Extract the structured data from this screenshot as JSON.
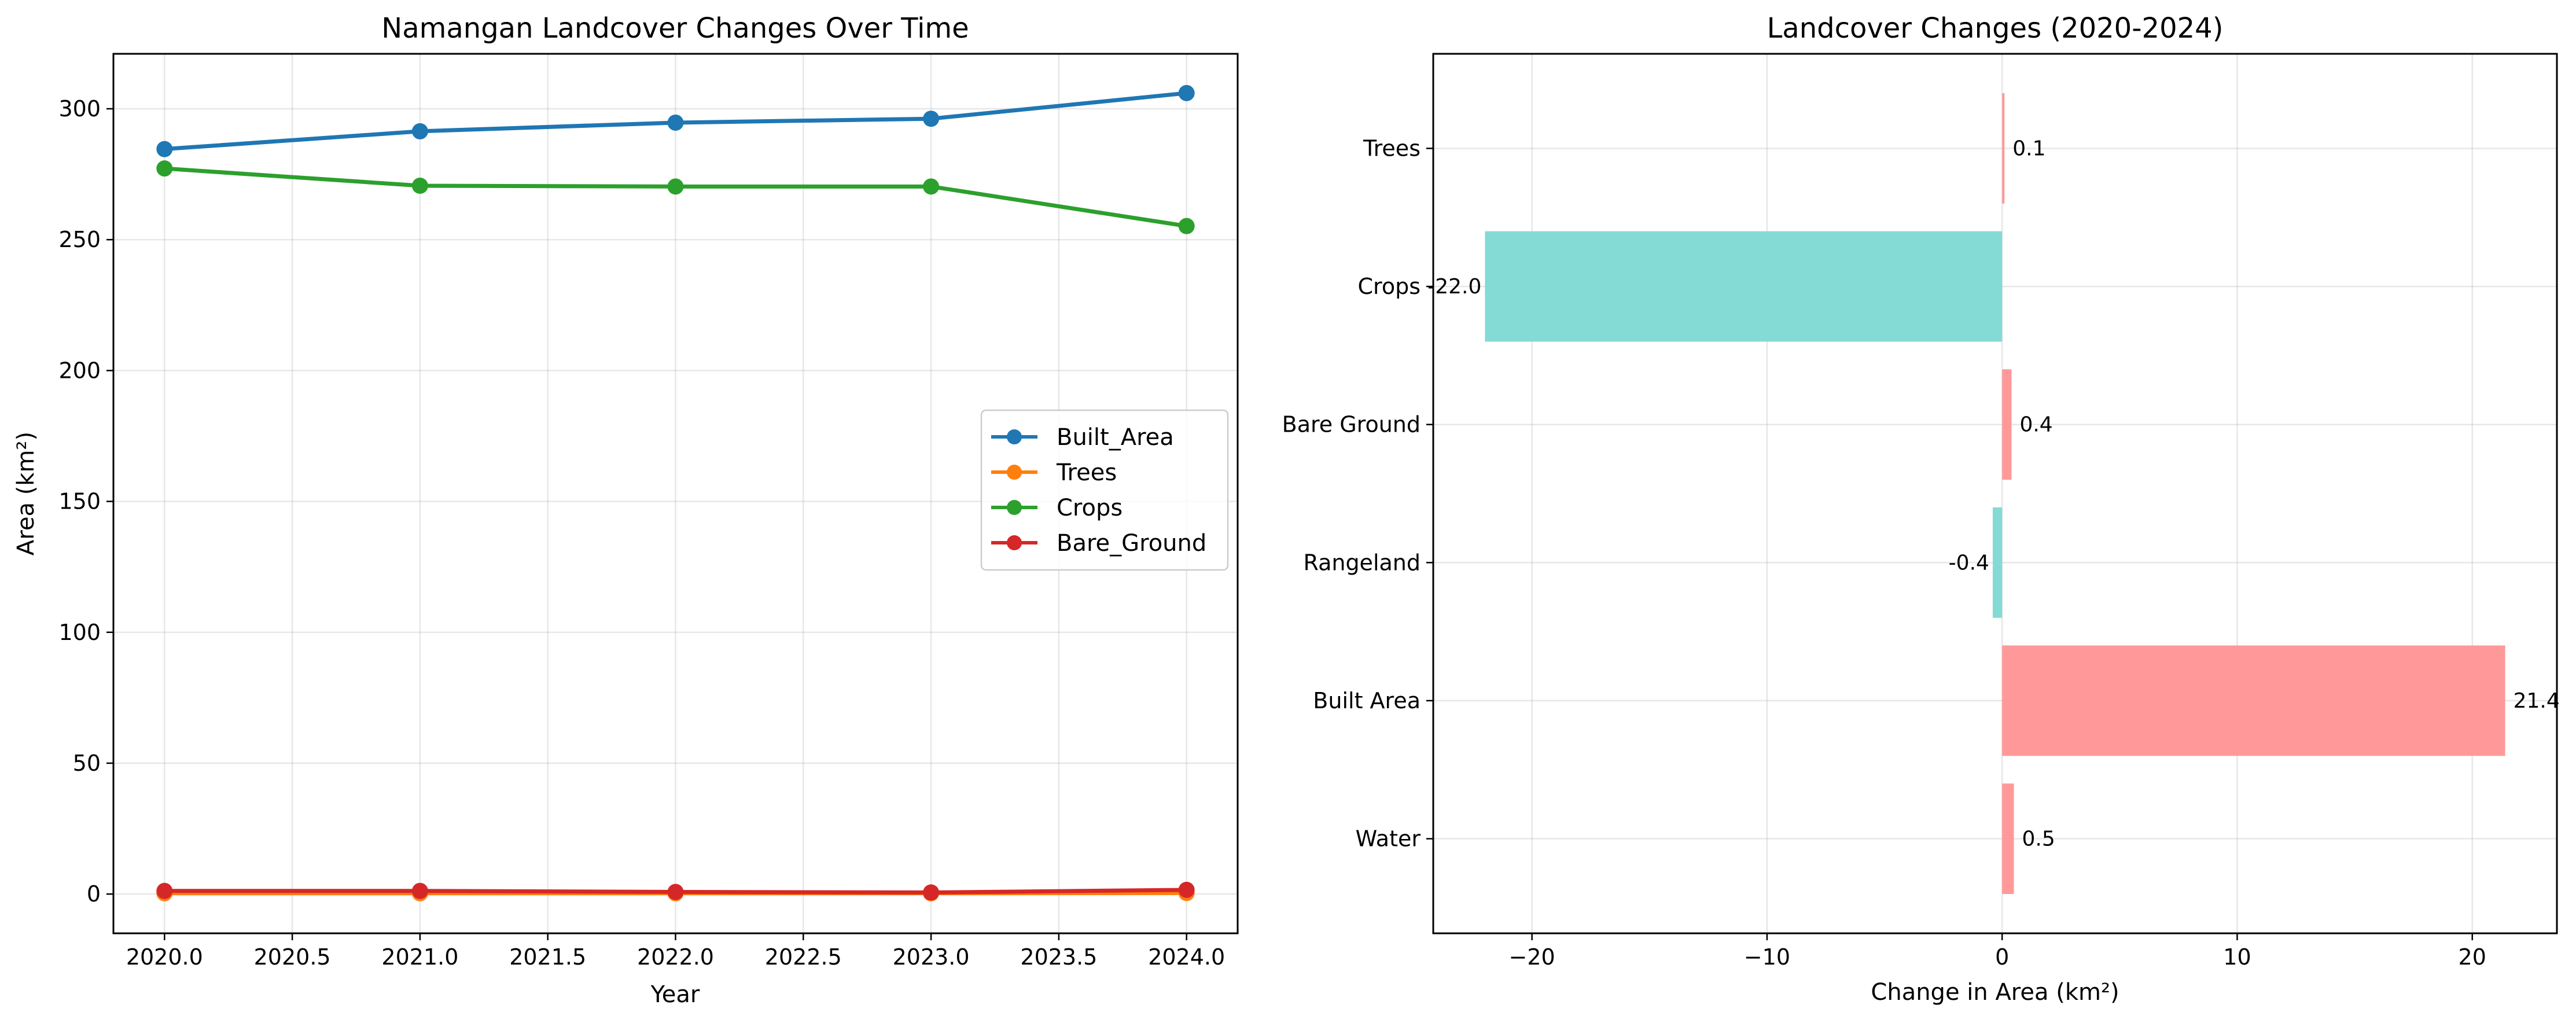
{
  "chart_data": [
    {
      "type": "line",
      "title": "Namangan Landcover Changes Over Time",
      "xlabel": "Year",
      "ylabel": "Area (km²)",
      "x": [
        2020,
        2021,
        2022,
        2023,
        2024
      ],
      "xlim": [
        2019.8,
        2024.2
      ],
      "ylim": [
        -15,
        321
      ],
      "xticks": [
        "2020.0",
        "2020.5",
        "2021.0",
        "2021.5",
        "2022.0",
        "2022.5",
        "2023.0",
        "2023.5",
        "2024.0"
      ],
      "yticks": [
        "0",
        "50",
        "100",
        "150",
        "200",
        "250",
        "300"
      ],
      "grid": true,
      "legend_position": "center-right",
      "series": [
        {
          "name": "Built_Area",
          "color": "#1f77b4",
          "values": [
            284.6,
            291.4,
            294.7,
            296.2,
            306.0
          ]
        },
        {
          "name": "Trees",
          "color": "#ff7f0e",
          "values": [
            0.3,
            0.3,
            0.3,
            0.3,
            0.4
          ]
        },
        {
          "name": "Crops",
          "color": "#2ca02c",
          "values": [
            277.2,
            270.6,
            270.3,
            270.3,
            255.2
          ]
        },
        {
          "name": "Bare_Ground",
          "color": "#d62728",
          "values": [
            1.2,
            1.2,
            0.8,
            0.6,
            1.6
          ]
        }
      ]
    },
    {
      "type": "bar",
      "orientation": "horizontal",
      "title": "Landcover Changes (2020-2024)",
      "xlabel": "Change in Area (km²)",
      "ylabel": "",
      "categories": [
        "Water",
        "Built Area",
        "Rangeland",
        "Bare Ground",
        "Crops",
        "Trees"
      ],
      "values": [
        0.5,
        21.4,
        -0.4,
        0.4,
        -22.0,
        0.1
      ],
      "labels": [
        "0.5",
        "21.4",
        "-0.4",
        "0.4",
        "-22.0",
        "0.1"
      ],
      "xlim": [
        -24.2,
        23.6
      ],
      "xticks": [
        {
          "value": -20,
          "label": "−20"
        },
        {
          "value": -10,
          "label": "−10"
        },
        {
          "value": 0,
          "label": "0"
        },
        {
          "value": 10,
          "label": "10"
        },
        {
          "value": 20,
          "label": "20"
        }
      ],
      "grid": true,
      "colors": {
        "positive": "#ff9999",
        "negative": "#84dbd5"
      }
    }
  ]
}
